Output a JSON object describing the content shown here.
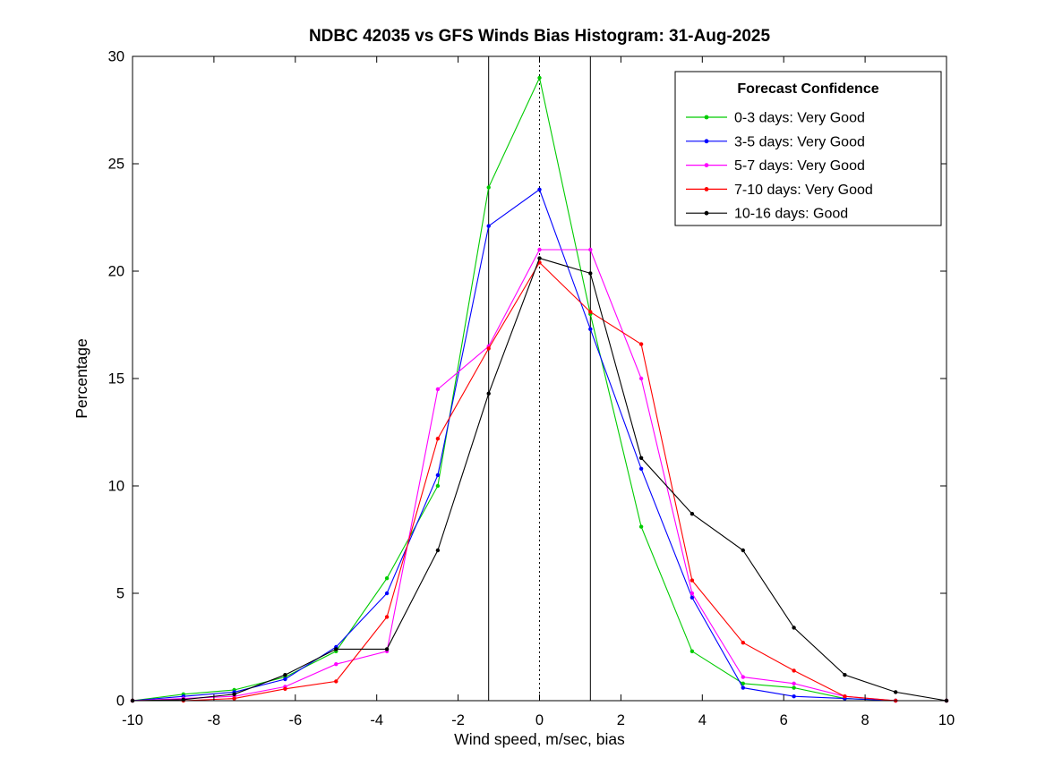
{
  "figure": {
    "background": "#ffffff"
  },
  "chart_data": {
    "type": "line",
    "title": "NDBC 42035 vs GFS Winds Bias Histogram: 31-Aug-2025",
    "xlabel": "Wind speed, m/sec, bias",
    "ylabel": "Percentage",
    "xlim": [
      -10,
      10
    ],
    "ylim": [
      0,
      30
    ],
    "xticks": [
      -10,
      -8,
      -6,
      -4,
      -2,
      0,
      2,
      4,
      6,
      8,
      10
    ],
    "yticks": [
      0,
      5,
      10,
      15,
      20,
      25,
      30
    ],
    "grid": false,
    "legend": {
      "title": "Forecast Confidence",
      "position": "top-right"
    },
    "x": [
      -10,
      -8.75,
      -7.5,
      -6.25,
      -5,
      -3.75,
      -2.5,
      -1.25,
      0,
      1.25,
      2.5,
      3.75,
      5,
      6.25,
      7.5,
      8.75,
      10
    ],
    "series": [
      {
        "name": "0-3 days: Very Good",
        "color": "#00cc00",
        "values": [
          0,
          0.3,
          0.5,
          1.1,
          2.3,
          5.7,
          10.0,
          23.9,
          29.0,
          18.0,
          8.1,
          2.3,
          0.8,
          0.6,
          0.1,
          0,
          0
        ]
      },
      {
        "name": "3-5 days: Very Good",
        "color": "#0000ff",
        "values": [
          0,
          0.2,
          0.4,
          1.0,
          2.5,
          5.0,
          10.5,
          22.1,
          23.8,
          17.3,
          10.8,
          4.8,
          0.6,
          0.2,
          0.1,
          0,
          0
        ]
      },
      {
        "name": "5-7 days: Very Good",
        "color": "#ff00ff",
        "values": [
          0,
          0.1,
          0.2,
          0.65,
          1.7,
          2.3,
          14.5,
          16.5,
          21.0,
          21.0,
          15.0,
          5.0,
          1.1,
          0.8,
          0.2,
          0,
          0
        ]
      },
      {
        "name": "7-10 days: Very Good",
        "color": "#ff0000",
        "values": [
          0,
          0,
          0.1,
          0.55,
          0.9,
          3.9,
          12.2,
          16.4,
          20.4,
          18.1,
          16.6,
          5.6,
          2.7,
          1.4,
          0.2,
          0,
          0
        ]
      },
      {
        "name": "10-16 days: Good",
        "color": "#000000",
        "values": [
          0,
          0.05,
          0.3,
          1.2,
          2.4,
          2.4,
          7.0,
          14.3,
          20.6,
          19.9,
          11.3,
          8.7,
          7.0,
          3.4,
          1.2,
          0.4,
          0
        ]
      }
    ],
    "reference_lines": [
      {
        "x": -1.25,
        "style": "solid",
        "color": "#000000"
      },
      {
        "x": 0,
        "style": "dotted",
        "color": "#000000"
      },
      {
        "x": 1.25,
        "style": "solid",
        "color": "#000000"
      }
    ]
  }
}
